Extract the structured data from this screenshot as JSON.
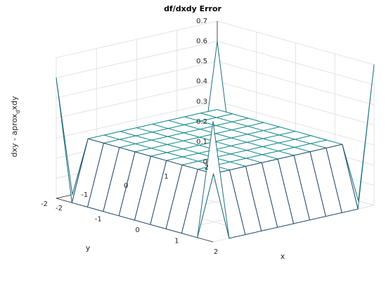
{
  "chart_data": {
    "type": "surface",
    "title": "df/dxdy Error",
    "xlabel": "x",
    "ylabel": "y",
    "zlabel_main": "dxy - aprox",
    "zlabel_sub": "d",
    "zlabel_tail": "xdy",
    "x_ticks": [
      "-2",
      "-1",
      "0",
      "1",
      "2"
    ],
    "y_ticks": [
      "-2",
      "-1",
      "0",
      "1",
      "2"
    ],
    "z_ticks": [
      "0",
      "0.1",
      "0.2",
      "0.3",
      "0.4",
      "0.5",
      "0.6",
      "0.7"
    ],
    "xlim": [
      -2,
      2
    ],
    "ylim": [
      -2,
      2
    ],
    "zlim": [
      0,
      0.7
    ],
    "grid": true,
    "grid_x": [
      -2,
      -1.6,
      -1.2,
      -0.8,
      -0.4,
      0,
      0.4,
      0.8,
      1.2,
      1.6,
      2
    ],
    "grid_y": [
      -2,
      -1.6,
      -1.2,
      -0.8,
      -0.4,
      0,
      0.4,
      0.8,
      1.2,
      1.6,
      2
    ],
    "plateau_value": 0.3,
    "edge_value": 0,
    "corner_spikes": [
      {
        "x": -2,
        "y": 2,
        "z": 0.6
      },
      {
        "x": 2,
        "y": 2,
        "z": 0.7
      },
      {
        "x": 2,
        "y": -2,
        "z": 0.6
      },
      {
        "x": -2,
        "y": -2,
        "z": 0.6
      }
    ],
    "colors": {
      "low": "#2c0a4a",
      "mid": "#1f8f8f",
      "high": "#f7e81e",
      "plateau": "#1aa39a"
    }
  }
}
